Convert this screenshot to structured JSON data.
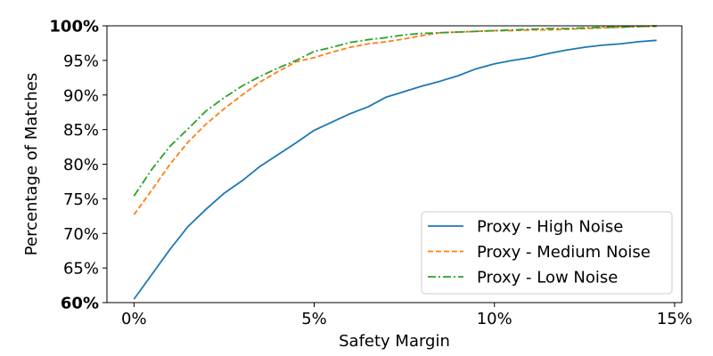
{
  "chart_data": {
    "type": "line",
    "title": "",
    "xlabel": "Safety Margin",
    "ylabel": "Percentage of Matches",
    "xlim": [
      -0.0075,
      0.152
    ],
    "ylim": [
      60,
      100
    ],
    "x_ticks": [
      0,
      0.05,
      0.1,
      0.15
    ],
    "x_tick_labels": [
      "0%",
      "5%",
      "10%",
      "15%"
    ],
    "y_ticks": [
      60,
      65,
      70,
      75,
      80,
      85,
      90,
      95,
      100
    ],
    "y_tick_labels": [
      "60%",
      "65%",
      "70%",
      "75%",
      "80%",
      "85%",
      "90%",
      "95%",
      "100%"
    ],
    "y_bold_ticks": [
      "60%",
      "100%"
    ],
    "grid": false,
    "legend_position": "lower-right",
    "x": [
      0,
      0.005,
      0.01,
      0.015,
      0.02,
      0.025,
      0.03,
      0.035,
      0.04,
      0.045,
      0.05,
      0.055,
      0.06,
      0.065,
      0.07,
      0.075,
      0.08,
      0.085,
      0.09,
      0.095,
      0.1,
      0.105,
      0.11,
      0.115,
      0.12,
      0.125,
      0.13,
      0.135,
      0.14,
      0.145
    ],
    "series": [
      {
        "name": "Proxy - High Noise",
        "color": "#1f77b4",
        "style": "solid",
        "values": [
          60.5,
          64.1,
          67.7,
          71.0,
          73.5,
          75.8,
          77.6,
          79.7,
          81.4,
          83.1,
          84.9,
          86.1,
          87.3,
          88.3,
          89.7,
          90.5,
          91.3,
          92.0,
          92.8,
          93.8,
          94.5,
          95.0,
          95.4,
          96.0,
          96.5,
          96.9,
          97.2,
          97.4,
          97.7,
          97.9
        ]
      },
      {
        "name": "Proxy - Medium Noise",
        "color": "#ff7f0e",
        "style": "dashed",
        "values": [
          72.7,
          76.3,
          80.0,
          83.2,
          85.8,
          88.0,
          90.0,
          91.9,
          93.4,
          94.8,
          95.4,
          96.2,
          96.9,
          97.4,
          97.7,
          98.1,
          98.6,
          99.0,
          99.1,
          99.2,
          99.3,
          99.3,
          99.4,
          99.4,
          99.5,
          99.6,
          99.7,
          99.8,
          99.9,
          99.9
        ]
      },
      {
        "name": "Proxy - Low Noise",
        "color": "#2ca02c",
        "style": "dashdot",
        "values": [
          75.4,
          79.3,
          82.6,
          85.1,
          87.7,
          89.6,
          91.3,
          92.7,
          93.9,
          95.0,
          96.3,
          96.9,
          97.6,
          98.0,
          98.3,
          98.7,
          98.9,
          99.0,
          99.1,
          99.2,
          99.3,
          99.4,
          99.5,
          99.6,
          99.6,
          99.7,
          99.8,
          99.8,
          99.9,
          100.0
        ]
      }
    ]
  }
}
